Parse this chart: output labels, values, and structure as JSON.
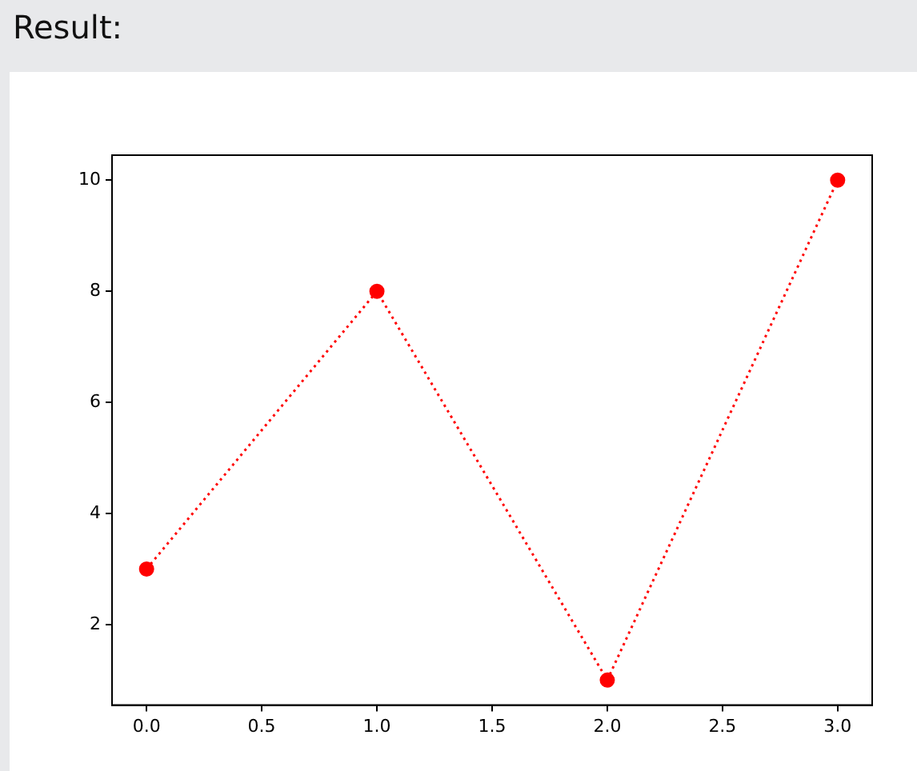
{
  "chart_data": {
    "type": "line",
    "title": "Result:",
    "x": [
      0,
      1,
      2,
      3
    ],
    "values": [
      3,
      8,
      1,
      10
    ],
    "color": "#ff0000",
    "marker": "circle",
    "line_style": "dotted",
    "grid": false,
    "xlim": [
      -0.15,
      3.15
    ],
    "xticks": [
      {
        "value": 0,
        "label": "0.0"
      },
      {
        "value": 0.5,
        "label": "0.5"
      },
      {
        "value": 1,
        "label": "1.0"
      },
      {
        "value": 1.5,
        "label": "1.5"
      },
      {
        "value": 2,
        "label": "2.0"
      },
      {
        "value": 2.5,
        "label": "2.5"
      },
      {
        "value": 3,
        "label": "3.0"
      }
    ],
    "ylim": [
      0.55,
      10.45
    ],
    "yticks": [
      2,
      4,
      6,
      8,
      10
    ]
  }
}
